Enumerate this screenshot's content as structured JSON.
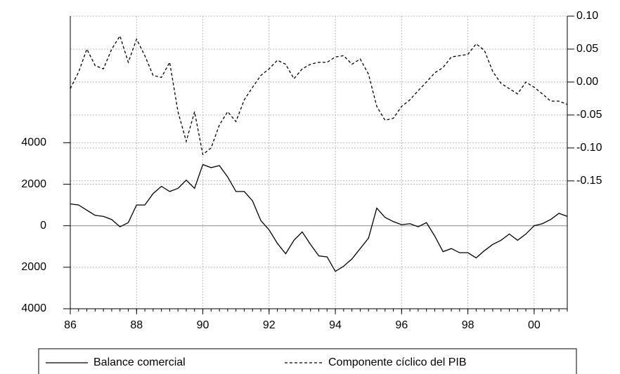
{
  "chart_data": {
    "type": "line",
    "x": [
      1986,
      1986.25,
      1986.5,
      1986.75,
      1987,
      1987.25,
      1987.5,
      1987.75,
      1988,
      1988.25,
      1988.5,
      1988.75,
      1989,
      1989.25,
      1989.5,
      1989.75,
      1990,
      1990.25,
      1990.5,
      1990.75,
      1991,
      1991.25,
      1991.5,
      1991.75,
      1992,
      1992.25,
      1992.5,
      1992.75,
      1993,
      1993.25,
      1993.5,
      1993.75,
      1994,
      1994.25,
      1994.5,
      1994.75,
      1995,
      1995.25,
      1995.5,
      1995.75,
      1996,
      1996.25,
      1996.5,
      1996.75,
      1997,
      1997.25,
      1997.5,
      1997.75,
      1998,
      1998.25,
      1998.5,
      1998.75,
      1999,
      1999.25,
      1999.5,
      1999.75,
      2000,
      2000.25,
      2000.5,
      2000.75,
      2001
    ],
    "series": [
      {
        "name": "Balance comercial",
        "color": "#000000",
        "dash": false,
        "values": [
          1050,
          1000,
          750,
          500,
          450,
          300,
          -50,
          150,
          1000,
          1000,
          1550,
          1900,
          1650,
          1800,
          2200,
          1800,
          2950,
          2800,
          2900,
          2350,
          1650,
          1650,
          1200,
          250,
          -200,
          -850,
          -1350,
          -700,
          -300,
          -900,
          -1450,
          -1500,
          -2200,
          -1950,
          -1600,
          -1100,
          -600,
          850,
          400,
          200,
          50,
          100,
          -50,
          150,
          -500,
          -1250,
          -1100,
          -1300,
          -1300,
          -1550,
          -1200,
          -900,
          -700,
          -400,
          -700,
          -400,
          0,
          100,
          300,
          600,
          450
        ]
      },
      {
        "name": "Componente cíclico del PIB",
        "color": "#000000",
        "dash": true,
        "axis": "y2",
        "values": [
          -0.01,
          0.015,
          0.05,
          0.025,
          0.02,
          0.05,
          0.07,
          0.03,
          0.065,
          0.04,
          0.01,
          0.007,
          0.03,
          -0.045,
          -0.09,
          -0.045,
          -0.11,
          -0.1,
          -0.065,
          -0.045,
          -0.06,
          -0.027,
          -0.008,
          0.01,
          0.02,
          0.033,
          0.027,
          0.005,
          0.02,
          0.027,
          0.03,
          0.03,
          0.038,
          0.04,
          0.027,
          0.035,
          0.012,
          -0.037,
          -0.058,
          -0.055,
          -0.037,
          -0.027,
          -0.013,
          0,
          0.014,
          0.022,
          0.038,
          0.04,
          0.042,
          0.058,
          0.048,
          0.016,
          -0.002,
          -0.01,
          -0.018,
          0,
          -0.008,
          -0.018,
          -0.029,
          -0.029,
          -0.034
        ]
      }
    ],
    "xlim": [
      1986,
      2001
    ],
    "xticks": [
      {
        "value": 1986,
        "label": "86"
      },
      {
        "value": 1988,
        "label": "88"
      },
      {
        "value": 1990,
        "label": "90"
      },
      {
        "value": 1992,
        "label": "92"
      },
      {
        "value": 1994,
        "label": "94"
      },
      {
        "value": 1996,
        "label": "96"
      },
      {
        "value": 1998,
        "label": "98"
      },
      {
        "value": 2000,
        "label": "00"
      }
    ],
    "ylim": [
      -4000,
      10100
    ],
    "yticks": [
      4000,
      2000,
      0,
      {
        "value": -2000,
        "label": "2000"
      },
      {
        "value": -4000,
        "label": "4000"
      }
    ],
    "y2lim": [
      -0.344,
      0.1
    ],
    "y2ticks": [
      {
        "value": 0.1,
        "label": "0.10"
      },
      0.05,
      {
        "value": 0,
        "label": "0.00"
      },
      -0.05,
      {
        "value": -0.1,
        "label": "-0.10"
      },
      -0.15
    ],
    "grid": true
  }
}
